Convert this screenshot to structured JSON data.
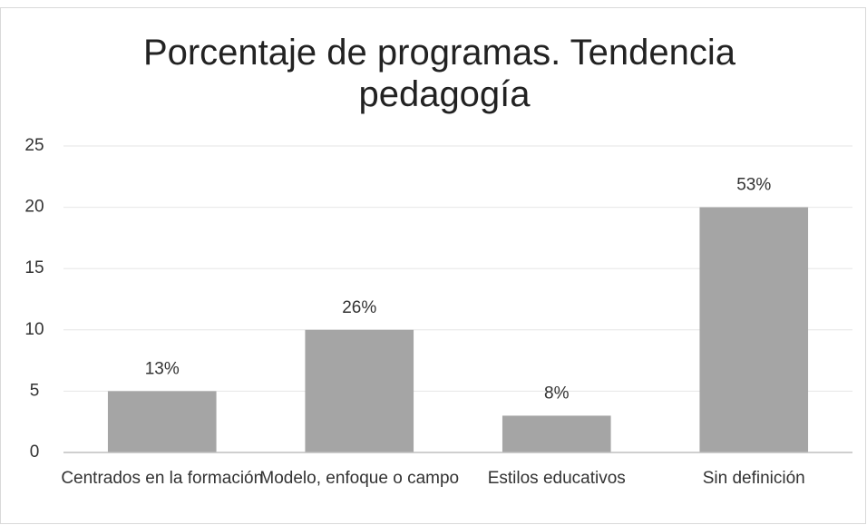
{
  "chart_data": {
    "type": "bar",
    "title": "Porcentaje de programas. Tendencia pedagogía",
    "categories": [
      "Centrados en la formación",
      "Modelo, enfoque o campo",
      "Estilos educativos",
      "Sin definición"
    ],
    "values": [
      5,
      10,
      3,
      20
    ],
    "value_labels": [
      "13%",
      "26%",
      "8%",
      "53%"
    ],
    "color": "#a5a5a5",
    "ylim": [
      0,
      25
    ],
    "yticks": [
      0,
      5,
      10,
      15,
      20,
      25
    ],
    "grid": true
  }
}
